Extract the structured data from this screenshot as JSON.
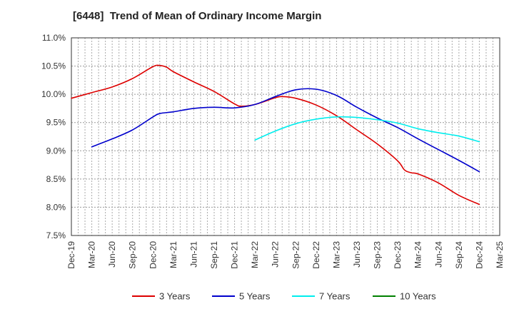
{
  "chart_data": {
    "type": "line",
    "title": "[6448]  Trend of Mean of Ordinary Income Margin",
    "xlabel": "",
    "ylabel": "",
    "x_ticks": [
      "Dec-19",
      "Mar-20",
      "Jun-20",
      "Sep-20",
      "Dec-20",
      "Mar-21",
      "Jun-21",
      "Sep-21",
      "Dec-21",
      "Mar-22",
      "Jun-22",
      "Sep-22",
      "Dec-22",
      "Mar-23",
      "Jun-23",
      "Sep-23",
      "Dec-23",
      "Mar-24",
      "Jun-24",
      "Sep-24",
      "Dec-24",
      "Mar-25"
    ],
    "y_ticks": [
      "7.5%",
      "8.0%",
      "8.5%",
      "9.0%",
      "9.5%",
      "10.0%",
      "10.5%",
      "11.0%"
    ],
    "ylim": [
      7.5,
      11.0
    ],
    "y_unit": "%",
    "grid": "dotted",
    "legend_position": "bottom",
    "series": [
      {
        "name": "3 Years",
        "color": "#dd0000",
        "x": [
          "2019-12",
          "2020-03",
          "2020-06",
          "2020-09",
          "2020-12",
          "2021-01",
          "2021-02",
          "2021-03",
          "2021-06",
          "2021-09",
          "2021-12",
          "2022-01",
          "2022-03",
          "2022-06",
          "2022-07",
          "2022-09",
          "2022-12",
          "2023-03",
          "2023-06",
          "2023-09",
          "2023-12",
          "2024-01",
          "2024-02",
          "2024-03",
          "2024-06",
          "2024-09",
          "2024-12"
        ],
        "values": [
          9.93,
          10.03,
          10.13,
          10.28,
          10.49,
          10.51,
          10.48,
          10.4,
          10.22,
          10.05,
          9.83,
          9.79,
          9.82,
          9.94,
          9.96,
          9.93,
          9.81,
          9.62,
          9.37,
          9.12,
          8.82,
          8.66,
          8.61,
          8.59,
          8.43,
          8.21,
          8.05
        ]
      },
      {
        "name": "5 Years",
        "color": "#0000cc",
        "x": [
          "2020-03",
          "2020-06",
          "2020-09",
          "2020-12",
          "2021-01",
          "2021-03",
          "2021-06",
          "2021-09",
          "2021-12",
          "2022-03",
          "2022-06",
          "2022-09",
          "2022-12",
          "2023-03",
          "2023-06",
          "2023-09",
          "2023-12",
          "2024-03",
          "2024-06",
          "2024-09",
          "2024-12"
        ],
        "values": [
          9.07,
          9.21,
          9.37,
          9.6,
          9.66,
          9.69,
          9.75,
          9.77,
          9.76,
          9.82,
          9.96,
          10.08,
          10.09,
          9.98,
          9.77,
          9.58,
          9.41,
          9.21,
          9.02,
          8.83,
          8.63
        ]
      },
      {
        "name": "7 Years",
        "color": "#00eeee",
        "x": [
          "2022-03",
          "2022-06",
          "2022-09",
          "2022-12",
          "2023-03",
          "2023-06",
          "2023-09",
          "2023-12",
          "2024-03",
          "2024-06",
          "2024-09",
          "2024-12"
        ],
        "values": [
          9.19,
          9.35,
          9.48,
          9.56,
          9.6,
          9.59,
          9.55,
          9.49,
          9.39,
          9.32,
          9.26,
          9.16
        ]
      },
      {
        "name": "10 Years",
        "color": "#008000",
        "x": [],
        "values": []
      }
    ]
  }
}
